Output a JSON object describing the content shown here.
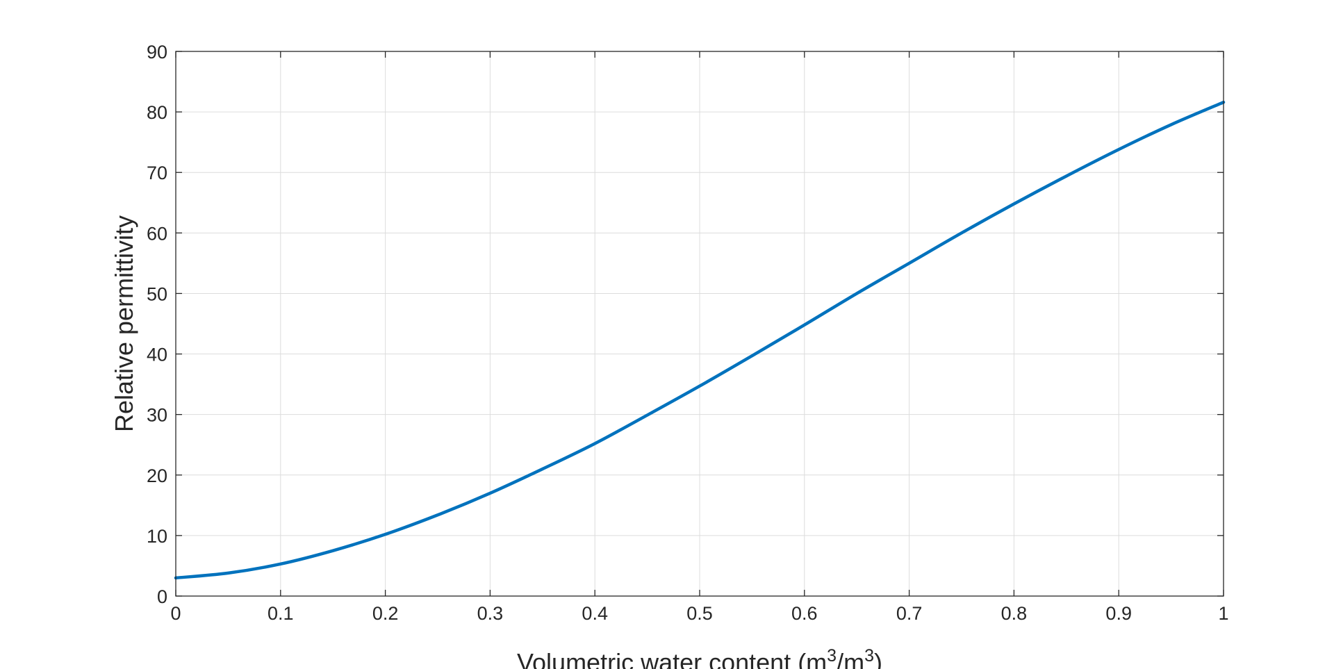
{
  "colors": {
    "series": "#0072BD",
    "axis": "#262626",
    "grid": "#dcdcdc"
  },
  "chart_data": {
    "type": "line",
    "xlabel_parts": {
      "base": "Volumetric water content (m",
      "sup1": "3",
      "mid": "/m",
      "sup2": "3",
      "end": ")"
    },
    "ylabel": "Relative permittivity",
    "xlim": [
      0,
      1
    ],
    "ylim": [
      0,
      90
    ],
    "xticks": [
      "0",
      "0.1",
      "0.2",
      "0.3",
      "0.4",
      "0.5",
      "0.6",
      "0.7",
      "0.8",
      "0.9",
      "1"
    ],
    "yticks": [
      "0",
      "10",
      "20",
      "30",
      "40",
      "50",
      "60",
      "70",
      "80",
      "90"
    ],
    "grid": true,
    "legend": "none",
    "series": [
      {
        "x": [
          0,
          0.05,
          0.1,
          0.15,
          0.2,
          0.25,
          0.3,
          0.35,
          0.4,
          0.45,
          0.5,
          0.55,
          0.6,
          0.65,
          0.7,
          0.75,
          0.8,
          0.85,
          0.9,
          0.95,
          1.0
        ],
        "y": [
          3.0,
          3.8,
          5.3,
          7.5,
          10.2,
          13.4,
          17.0,
          21.0,
          25.2,
          29.9,
          34.7,
          39.7,
          44.8,
          50.0,
          55.0,
          60.0,
          64.8,
          69.4,
          73.8,
          77.9,
          81.6
        ]
      }
    ]
  }
}
